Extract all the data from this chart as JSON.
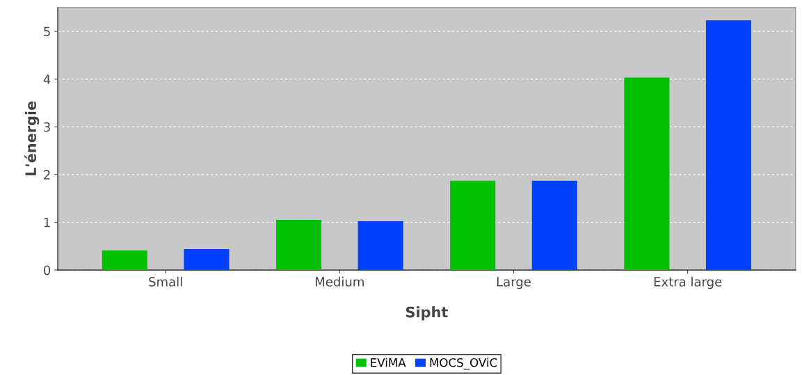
{
  "chart_data": {
    "type": "bar",
    "xlabel": "Sipht",
    "ylabel": "L'énergie",
    "categories": [
      "Small",
      "Medium",
      "Large",
      "Extra large"
    ],
    "series": [
      {
        "name": "EViMA",
        "color": "#00c000",
        "values": [
          0.41,
          1.05,
          1.87,
          4.03
        ]
      },
      {
        "name": "MOCS_OViC",
        "color": "#0040ff",
        "values": [
          0.44,
          1.02,
          1.87,
          5.23
        ]
      }
    ],
    "ylim": [
      0,
      5.5
    ],
    "yticks": [
      0,
      1,
      2,
      3,
      4,
      5
    ],
    "grid": "y",
    "legend": "bottom"
  }
}
